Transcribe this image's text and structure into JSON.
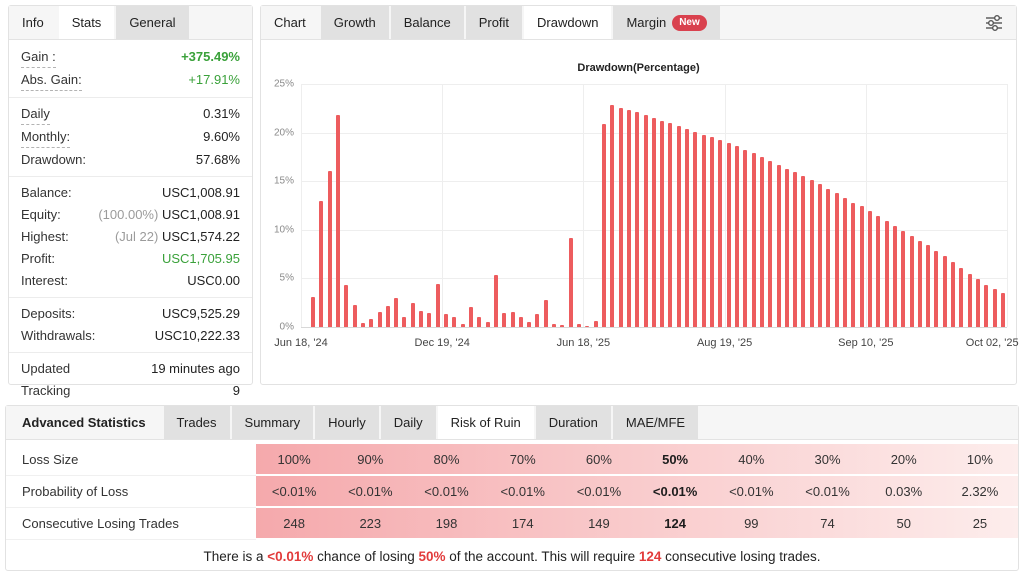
{
  "left_panel": {
    "tabs": [
      {
        "label": "Info",
        "style": "plain"
      },
      {
        "label": "Stats",
        "style": "active"
      },
      {
        "label": "General",
        "style": "gray"
      }
    ],
    "stat_groups": [
      {
        "rows": [
          {
            "label": "Gain :",
            "value": "+375.49%",
            "value_style": "green-bold",
            "underline": true
          },
          {
            "label": "Abs. Gain:",
            "value": "+17.91%",
            "value_style": "green",
            "underline": true
          }
        ]
      },
      {
        "rows": [
          {
            "label": "Daily",
            "value": "0.31%",
            "underline": true
          },
          {
            "label": "Monthly:",
            "value": "9.60%",
            "underline": true
          },
          {
            "label": "Drawdown:",
            "value": "57.68%"
          }
        ]
      },
      {
        "rows": [
          {
            "label": "Balance:",
            "value": "USC1,008.91"
          },
          {
            "label": "Equity:",
            "prefix": "(100.00%) ",
            "value": "USC1,008.91"
          },
          {
            "label": "Highest:",
            "prefix": "(Jul 22) ",
            "value": "USC1,574.22"
          },
          {
            "label": "Profit:",
            "value": "USC1,705.95",
            "value_style": "green"
          },
          {
            "label": "Interest:",
            "value": "USC0.00"
          }
        ]
      },
      {
        "rows": [
          {
            "label": "Deposits:",
            "value": "USC9,525.29"
          },
          {
            "label": "Withdrawals:",
            "value": "USC10,222.33"
          }
        ]
      },
      {
        "rows": [
          {
            "label": "Updated",
            "value": "19 minutes ago"
          },
          {
            "label": "Tracking",
            "value": "9"
          }
        ]
      }
    ]
  },
  "chart_panel": {
    "tabs": [
      {
        "label": "Chart",
        "style": "plain"
      },
      {
        "label": "Growth",
        "style": "gray"
      },
      {
        "label": "Balance",
        "style": "gray"
      },
      {
        "label": "Profit",
        "style": "gray"
      },
      {
        "label": "Drawdown",
        "style": "active"
      },
      {
        "label": "Margin",
        "style": "gray",
        "badge": "New"
      }
    ],
    "filter_icon": "sliders-icon"
  },
  "chart_data": {
    "type": "bar",
    "title": "Drawdown(Percentage)",
    "xlabel": "",
    "ylabel": "",
    "ylim": [
      0,
      25
    ],
    "grid": true,
    "bar_color": "#ed5c5e",
    "yticks": [
      {
        "label": "25%",
        "value": 25
      },
      {
        "label": "20%",
        "value": 20
      },
      {
        "label": "15%",
        "value": 15
      },
      {
        "label": "10%",
        "value": 10
      },
      {
        "label": "5%",
        "value": 5
      },
      {
        "label": "0%",
        "value": 0
      }
    ],
    "xticks": [
      "Jun 18, '24",
      "Dec 19, '24",
      "Jun 18, '25",
      "Aug 19, '25",
      "Sep 10, '25",
      "Oct 02, '25"
    ],
    "values": [
      3.1,
      13.0,
      16.1,
      21.8,
      4.3,
      2.3,
      0.4,
      0.8,
      1.5,
      2.2,
      3.0,
      1.0,
      2.5,
      1.6,
      1.4,
      4.4,
      1.3,
      1.0,
      0.3,
      2.1,
      1.0,
      0.5,
      5.3,
      1.4,
      1.5,
      1.0,
      0.5,
      1.3,
      2.8,
      0.3,
      0.2,
      9.2,
      0.3,
      0.1,
      0.6,
      20.9,
      22.8,
      22.5,
      22.3,
      22.1,
      21.8,
      21.5,
      21.2,
      21.0,
      20.7,
      20.4,
      20.1,
      19.8,
      19.5,
      19.2,
      18.9,
      18.6,
      18.2,
      17.9,
      17.5,
      17.1,
      16.7,
      16.3,
      15.9,
      15.5,
      15.1,
      14.7,
      14.2,
      13.8,
      13.3,
      12.8,
      12.4,
      11.9,
      11.4,
      10.9,
      10.4,
      9.9,
      9.4,
      8.9,
      8.4,
      7.8,
      7.3,
      6.7,
      6.1,
      5.5,
      4.9,
      4.3,
      3.9,
      3.5
    ]
  },
  "bottom_panel": {
    "tabs": [
      {
        "label": "Advanced Statistics",
        "style": "title"
      },
      {
        "label": "Trades",
        "style": "gray"
      },
      {
        "label": "Summary",
        "style": "gray"
      },
      {
        "label": "Hourly",
        "style": "gray"
      },
      {
        "label": "Daily",
        "style": "gray"
      },
      {
        "label": "Risk of Ruin",
        "style": "active"
      },
      {
        "label": "Duration",
        "style": "gray"
      },
      {
        "label": "MAE/MFE",
        "style": "gray"
      }
    ],
    "risk_table": {
      "bold_column_index": 5,
      "rows": [
        {
          "label": "Loss Size",
          "values": [
            "100%",
            "90%",
            "80%",
            "70%",
            "60%",
            "50%",
            "40%",
            "30%",
            "20%",
            "10%"
          ]
        },
        {
          "label": "Probability of Loss",
          "values": [
            "<0.01%",
            "<0.01%",
            "<0.01%",
            "<0.01%",
            "<0.01%",
            "<0.01%",
            "<0.01%",
            "<0.01%",
            "0.03%",
            "2.32%"
          ]
        },
        {
          "label": "Consecutive Losing Trades",
          "values": [
            "248",
            "223",
            "198",
            "174",
            "149",
            "124",
            "99",
            "74",
            "50",
            "25"
          ]
        }
      ]
    },
    "summary_parts": [
      {
        "text": "There is a ",
        "red": false
      },
      {
        "text": "<0.01%",
        "red": true
      },
      {
        "text": " chance of losing ",
        "red": false
      },
      {
        "text": "50%",
        "red": true
      },
      {
        "text": " of the account. This will require ",
        "red": false
      },
      {
        "text": "124",
        "red": true
      },
      {
        "text": " consecutive losing trades.",
        "red": false
      }
    ]
  }
}
